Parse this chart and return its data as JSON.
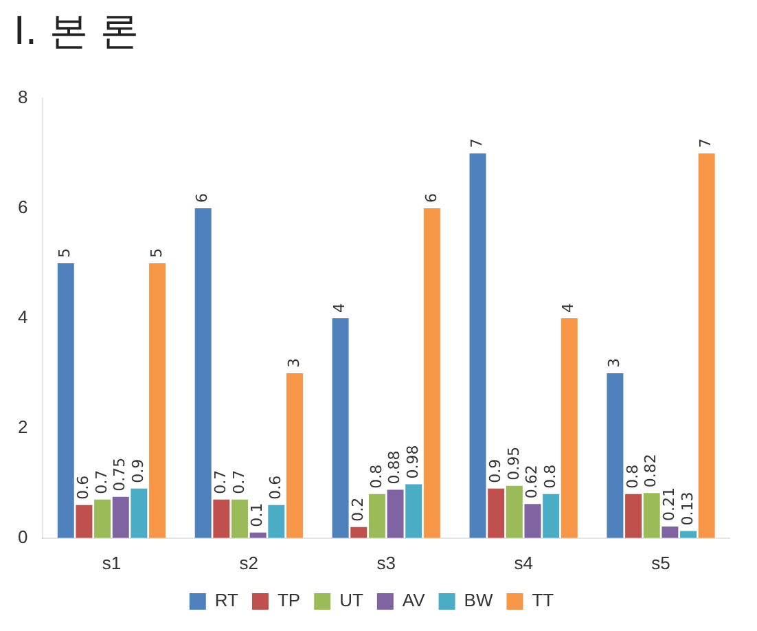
{
  "chart_data": {
    "type": "bar",
    "title": "I. 본 론",
    "categories": [
      "s1",
      "s2",
      "s3",
      "s4",
      "s5"
    ],
    "series": [
      {
        "name": "RT",
        "color": "#4f81bd",
        "values": [
          5,
          6,
          4,
          7,
          3
        ]
      },
      {
        "name": "TP",
        "color": "#c0504d",
        "values": [
          0.6,
          0.7,
          0.2,
          0.9,
          0.8
        ]
      },
      {
        "name": "UT",
        "color": "#9bbb59",
        "values": [
          0.7,
          0.7,
          0.8,
          0.95,
          0.82
        ]
      },
      {
        "name": "AV",
        "color": "#8064a2",
        "values": [
          0.75,
          0.1,
          0.88,
          0.62,
          0.21
        ]
      },
      {
        "name": "BW",
        "color": "#4bacc6",
        "values": [
          0.9,
          0.6,
          0.98,
          0.8,
          0.13
        ]
      },
      {
        "name": "TT",
        "color": "#f79646",
        "values": [
          5,
          3,
          6,
          4,
          7
        ]
      }
    ],
    "ylim": [
      0,
      8
    ],
    "yticks": [
      0,
      2,
      4,
      6,
      8
    ],
    "grid": false,
    "legend": "bottom",
    "data_labels": true
  }
}
